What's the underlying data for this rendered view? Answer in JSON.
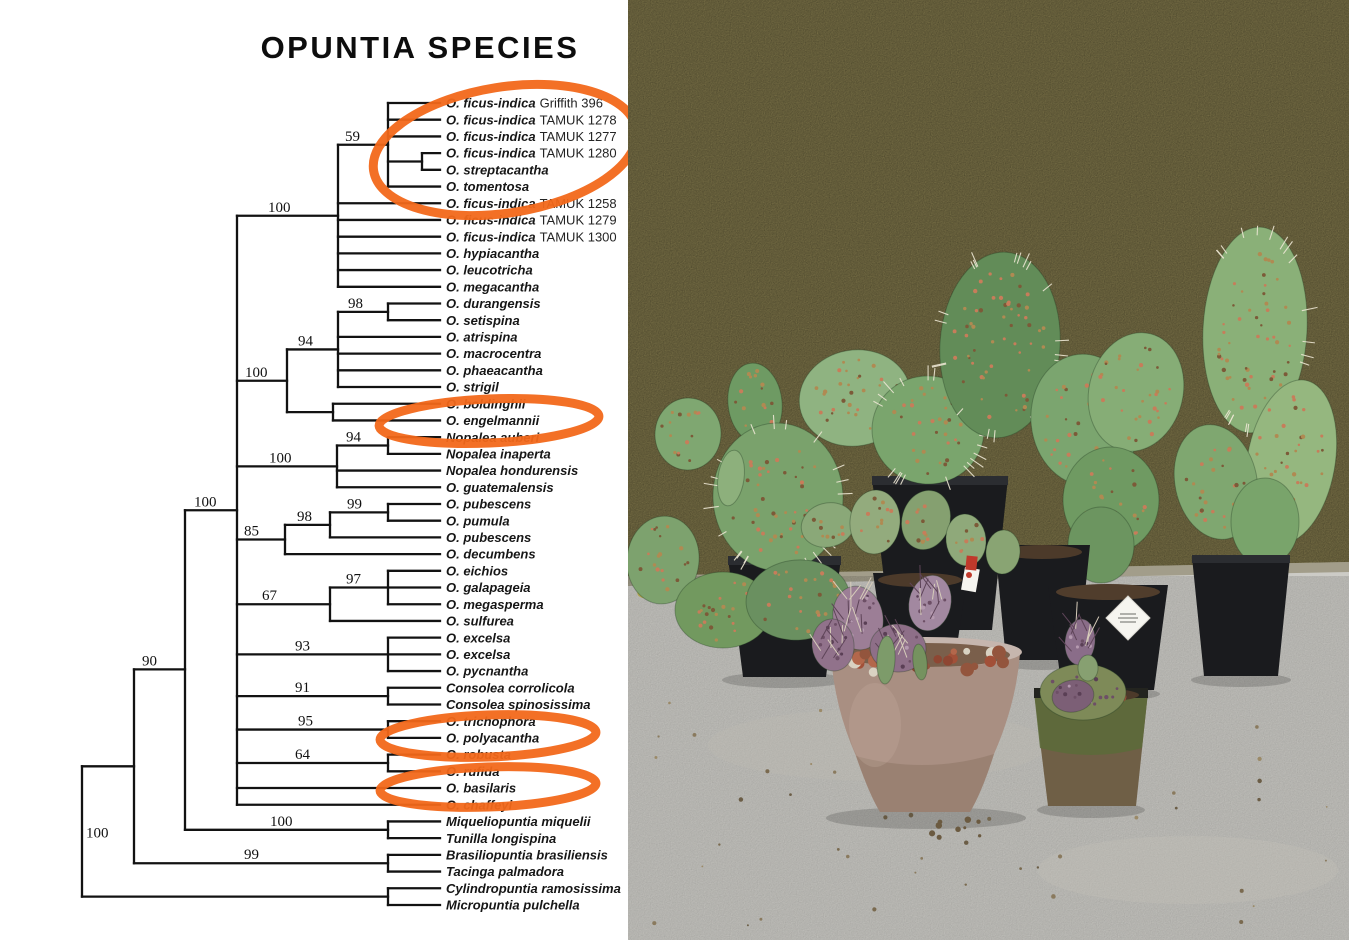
{
  "title": "OPUNTIA SPECIES",
  "highlight": {
    "color": "#f2681a",
    "circled_leaf_indices": [
      0,
      1,
      2,
      19,
      38,
      41
    ]
  },
  "tree": {
    "leaves": [
      {
        "name": "O. ficus-indica",
        "strain": "Griffith 396"
      },
      {
        "name": "O. ficus-indica",
        "strain": "TAMUK 1278"
      },
      {
        "name": "O. ficus-indica",
        "strain": "TAMUK 1277"
      },
      {
        "name": "O. ficus-indica",
        "strain": "TAMUK 1280"
      },
      {
        "name": "O. streptacantha",
        "strain": ""
      },
      {
        "name": "O. tomentosa",
        "strain": ""
      },
      {
        "name": "O. ficus-indica",
        "strain": "TAMUK 1258"
      },
      {
        "name": "O. ficus-indica",
        "strain": "TAMUK 1279"
      },
      {
        "name": "O. ficus-indica",
        "strain": "TAMUK 1300"
      },
      {
        "name": "O. hypiacantha",
        "strain": ""
      },
      {
        "name": "O. leucotricha",
        "strain": ""
      },
      {
        "name": "O. megacantha",
        "strain": ""
      },
      {
        "name": "O. durangensis",
        "strain": ""
      },
      {
        "name": "O. setispina",
        "strain": ""
      },
      {
        "name": "O. atrispina",
        "strain": ""
      },
      {
        "name": "O. macrocentra",
        "strain": ""
      },
      {
        "name": "O. phaeacantha",
        "strain": ""
      },
      {
        "name": "O. strigil",
        "strain": ""
      },
      {
        "name": "O. boldinghii",
        "strain": ""
      },
      {
        "name": "O. engelmannii",
        "strain": ""
      },
      {
        "name": "Nopalea auberi",
        "strain": ""
      },
      {
        "name": "Nopalea inaperta",
        "strain": ""
      },
      {
        "name": "Nopalea hondurensis",
        "strain": ""
      },
      {
        "name": "O. guatemalensis",
        "strain": ""
      },
      {
        "name": "O. pubescens",
        "strain": ""
      },
      {
        "name": "O. pumula",
        "strain": ""
      },
      {
        "name": "O. pubescens",
        "strain": ""
      },
      {
        "name": "O. decumbens",
        "strain": ""
      },
      {
        "name": "O. eichios",
        "strain": ""
      },
      {
        "name": "O. galapageia",
        "strain": ""
      },
      {
        "name": "O. megasperma",
        "strain": ""
      },
      {
        "name": "O. sulfurea",
        "strain": ""
      },
      {
        "name": "O. excelsa",
        "strain": ""
      },
      {
        "name": "O. excelsa",
        "strain": ""
      },
      {
        "name": "O. pycnantha",
        "strain": ""
      },
      {
        "name": "Consolea corrolicola",
        "strain": ""
      },
      {
        "name": "Consolea spinosissima",
        "strain": ""
      },
      {
        "name": "O. trichophora",
        "strain": ""
      },
      {
        "name": "O. polyacantha",
        "strain": ""
      },
      {
        "name": "O. robusta",
        "strain": ""
      },
      {
        "name": "O. rufida",
        "strain": ""
      },
      {
        "name": "O. basilaris",
        "strain": ""
      },
      {
        "name": "O. chaffeyi",
        "strain": ""
      },
      {
        "name": "Miqueliopuntia miquelii",
        "strain": ""
      },
      {
        "name": "Tunilla longispina",
        "strain": ""
      },
      {
        "name": "Brasiliopuntia brasiliensis",
        "strain": ""
      },
      {
        "name": "Tacinga palmadora",
        "strain": ""
      },
      {
        "name": "Cylindropuntia ramosissima",
        "strain": ""
      },
      {
        "name": "Micropuntia pulchella",
        "strain": ""
      }
    ],
    "bootstraps": [
      "59",
      "100",
      "98",
      "94",
      "100",
      "94",
      "100",
      "100",
      "99",
      "98",
      "85",
      "97",
      "67",
      "93",
      "91",
      "95",
      "64",
      "90",
      "100",
      "99",
      "100"
    ]
  },
  "photo": {
    "wall_color": "#8b8151",
    "floor_color": "#cccbc6",
    "nursery_pot_color": "#1a1b1e",
    "ceramic_pot_color": "#a98f82",
    "lava_rock_color": "#a25038",
    "pad_green_colors": [
      "#628c58",
      "#7aa26c",
      "#8fb381",
      "#95b77f"
    ],
    "purple_cactus_color": "#9c7e96"
  }
}
